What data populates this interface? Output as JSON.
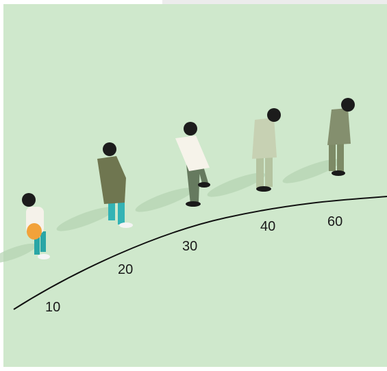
{
  "labels": [
    "10",
    "20",
    "30",
    "40",
    "60"
  ]
}
